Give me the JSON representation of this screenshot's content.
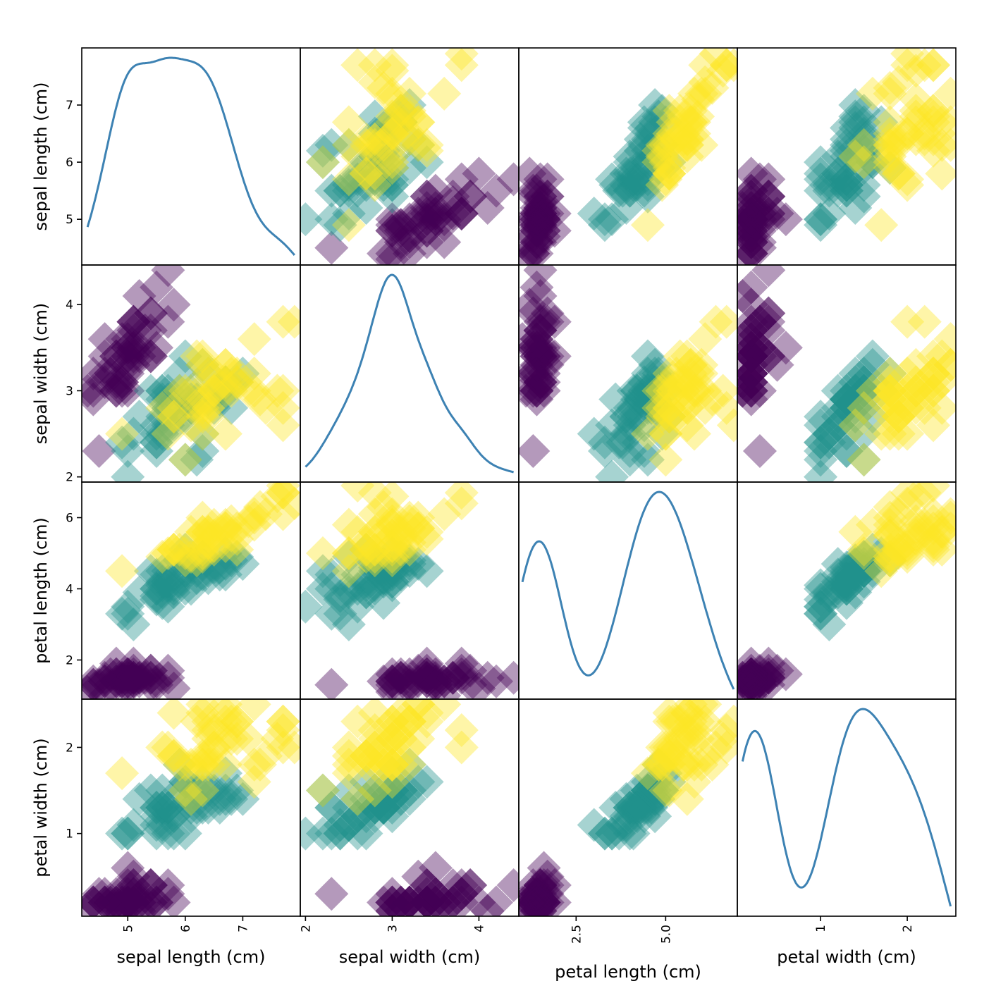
{
  "chart_data": {
    "type": "scatter",
    "title": "",
    "kind": "scatter_matrix",
    "diagonal": "kde",
    "marker": "diamond",
    "alpha": 0.4,
    "colormap": "viridis",
    "class_colors": [
      "#440154",
      "#21918c",
      "#fde725"
    ],
    "kde_color": "#1f77b4",
    "variables": [
      "sepal length (cm)",
      "sepal width (cm)",
      "petal length (cm)",
      "petal width (cm)"
    ],
    "axis_ranges": [
      [
        4.2,
        8.0
      ],
      [
        1.94,
        4.46
      ],
      [
        0.9,
        7.0
      ],
      [
        0.04,
        2.56
      ]
    ],
    "yticks": [
      {
        "values": [
          5,
          6,
          7
        ],
        "labels": [
          "5",
          "6",
          "7"
        ]
      },
      {
        "values": [
          2,
          3,
          4
        ],
        "labels": [
          "2",
          "3",
          "4"
        ]
      },
      {
        "values": [
          2,
          4,
          6
        ],
        "labels": [
          "2",
          "4",
          "6"
        ]
      },
      {
        "values": [
          1,
          2
        ],
        "labels": [
          "1",
          "2"
        ]
      }
    ],
    "xticks": [
      {
        "values": [
          5,
          6,
          7
        ],
        "labels": [
          "5",
          "6",
          "7"
        ]
      },
      {
        "values": [
          2,
          3,
          4
        ],
        "labels": [
          "2",
          "3",
          "4"
        ]
      },
      {
        "values": [
          2.5,
          5.0
        ],
        "labels": [
          "2.5",
          "5.0"
        ]
      },
      {
        "values": [
          1,
          2
        ],
        "labels": [
          "1",
          "2"
        ]
      }
    ],
    "grid": false,
    "legend": "none",
    "samples": [
      [
        5.1,
        3.5,
        1.4,
        0.2,
        0
      ],
      [
        4.9,
        3.0,
        1.4,
        0.2,
        0
      ],
      [
        4.7,
        3.2,
        1.3,
        0.2,
        0
      ],
      [
        4.6,
        3.1,
        1.5,
        0.2,
        0
      ],
      [
        5.0,
        3.6,
        1.4,
        0.2,
        0
      ],
      [
        5.4,
        3.9,
        1.7,
        0.4,
        0
      ],
      [
        4.6,
        3.4,
        1.4,
        0.3,
        0
      ],
      [
        5.0,
        3.4,
        1.5,
        0.2,
        0
      ],
      [
        4.4,
        2.9,
        1.4,
        0.2,
        0
      ],
      [
        4.9,
        3.1,
        1.5,
        0.1,
        0
      ],
      [
        5.4,
        3.7,
        1.5,
        0.2,
        0
      ],
      [
        4.8,
        3.4,
        1.6,
        0.2,
        0
      ],
      [
        4.8,
        3.0,
        1.4,
        0.1,
        0
      ],
      [
        4.3,
        3.0,
        1.1,
        0.1,
        0
      ],
      [
        5.8,
        4.0,
        1.2,
        0.2,
        0
      ],
      [
        5.7,
        4.4,
        1.5,
        0.4,
        0
      ],
      [
        5.4,
        3.9,
        1.3,
        0.4,
        0
      ],
      [
        5.1,
        3.5,
        1.4,
        0.3,
        0
      ],
      [
        5.7,
        3.8,
        1.7,
        0.3,
        0
      ],
      [
        5.1,
        3.8,
        1.5,
        0.3,
        0
      ],
      [
        5.4,
        3.4,
        1.7,
        0.2,
        0
      ],
      [
        5.1,
        3.7,
        1.5,
        0.4,
        0
      ],
      [
        4.6,
        3.6,
        1.0,
        0.2,
        0
      ],
      [
        5.1,
        3.3,
        1.7,
        0.5,
        0
      ],
      [
        4.8,
        3.4,
        1.9,
        0.2,
        0
      ],
      [
        5.0,
        3.0,
        1.6,
        0.2,
        0
      ],
      [
        5.0,
        3.4,
        1.6,
        0.4,
        0
      ],
      [
        5.2,
        3.5,
        1.5,
        0.2,
        0
      ],
      [
        5.2,
        3.4,
        1.4,
        0.2,
        0
      ],
      [
        4.7,
        3.2,
        1.6,
        0.2,
        0
      ],
      [
        4.8,
        3.1,
        1.6,
        0.2,
        0
      ],
      [
        5.4,
        3.4,
        1.5,
        0.4,
        0
      ],
      [
        5.2,
        4.1,
        1.5,
        0.1,
        0
      ],
      [
        5.5,
        4.2,
        1.4,
        0.2,
        0
      ],
      [
        4.9,
        3.1,
        1.5,
        0.2,
        0
      ],
      [
        5.0,
        3.2,
        1.2,
        0.2,
        0
      ],
      [
        5.5,
        3.5,
        1.3,
        0.2,
        0
      ],
      [
        4.9,
        3.6,
        1.4,
        0.1,
        0
      ],
      [
        4.4,
        3.0,
        1.3,
        0.2,
        0
      ],
      [
        5.1,
        3.4,
        1.5,
        0.2,
        0
      ],
      [
        5.0,
        3.5,
        1.3,
        0.3,
        0
      ],
      [
        4.5,
        2.3,
        1.3,
        0.3,
        0
      ],
      [
        4.4,
        3.2,
        1.3,
        0.2,
        0
      ],
      [
        5.0,
        3.5,
        1.6,
        0.6,
        0
      ],
      [
        5.1,
        3.8,
        1.9,
        0.4,
        0
      ],
      [
        4.8,
        3.0,
        1.4,
        0.3,
        0
      ],
      [
        5.1,
        3.8,
        1.6,
        0.2,
        0
      ],
      [
        4.6,
        3.2,
        1.4,
        0.2,
        0
      ],
      [
        5.3,
        3.7,
        1.5,
        0.2,
        0
      ],
      [
        5.0,
        3.3,
        1.4,
        0.2,
        0
      ],
      [
        7.0,
        3.2,
        4.7,
        1.4,
        1
      ],
      [
        6.4,
        3.2,
        4.5,
        1.5,
        1
      ],
      [
        6.9,
        3.1,
        4.9,
        1.5,
        1
      ],
      [
        5.5,
        2.3,
        4.0,
        1.3,
        1
      ],
      [
        6.5,
        2.8,
        4.6,
        1.5,
        1
      ],
      [
        5.7,
        2.8,
        4.5,
        1.3,
        1
      ],
      [
        6.3,
        3.3,
        4.7,
        1.6,
        1
      ],
      [
        4.9,
        2.4,
        3.3,
        1.0,
        1
      ],
      [
        6.6,
        2.9,
        4.6,
        1.3,
        1
      ],
      [
        5.2,
        2.7,
        3.9,
        1.4,
        1
      ],
      [
        5.0,
        2.0,
        3.5,
        1.0,
        1
      ],
      [
        5.9,
        3.0,
        4.2,
        1.5,
        1
      ],
      [
        6.0,
        2.2,
        4.0,
        1.0,
        1
      ],
      [
        6.1,
        2.9,
        4.7,
        1.4,
        1
      ],
      [
        5.6,
        2.9,
        3.6,
        1.3,
        1
      ],
      [
        6.7,
        3.1,
        4.4,
        1.4,
        1
      ],
      [
        5.6,
        3.0,
        4.5,
        1.5,
        1
      ],
      [
        5.8,
        2.7,
        4.1,
        1.0,
        1
      ],
      [
        6.2,
        2.2,
        4.5,
        1.5,
        1
      ],
      [
        5.6,
        2.5,
        3.9,
        1.1,
        1
      ],
      [
        5.9,
        3.2,
        4.8,
        1.8,
        1
      ],
      [
        6.1,
        2.8,
        4.0,
        1.3,
        1
      ],
      [
        6.3,
        2.5,
        4.9,
        1.5,
        1
      ],
      [
        6.1,
        2.8,
        4.7,
        1.2,
        1
      ],
      [
        6.4,
        2.9,
        4.3,
        1.3,
        1
      ],
      [
        6.6,
        3.0,
        4.4,
        1.4,
        1
      ],
      [
        6.8,
        2.8,
        4.8,
        1.4,
        1
      ],
      [
        6.7,
        3.0,
        5.0,
        1.7,
        1
      ],
      [
        6.0,
        2.9,
        4.5,
        1.5,
        1
      ],
      [
        5.7,
        2.6,
        3.5,
        1.0,
        1
      ],
      [
        5.5,
        2.4,
        3.8,
        1.1,
        1
      ],
      [
        5.5,
        2.4,
        3.7,
        1.0,
        1
      ],
      [
        5.8,
        2.7,
        3.9,
        1.2,
        1
      ],
      [
        6.0,
        2.7,
        5.1,
        1.6,
        1
      ],
      [
        5.4,
        3.0,
        4.5,
        1.5,
        1
      ],
      [
        6.0,
        3.4,
        4.5,
        1.6,
        1
      ],
      [
        6.7,
        3.1,
        4.7,
        1.5,
        1
      ],
      [
        6.3,
        2.3,
        4.4,
        1.3,
        1
      ],
      [
        5.6,
        3.0,
        4.1,
        1.3,
        1
      ],
      [
        5.5,
        2.5,
        4.0,
        1.3,
        1
      ],
      [
        5.5,
        2.6,
        4.4,
        1.2,
        1
      ],
      [
        6.1,
        3.0,
        4.6,
        1.4,
        1
      ],
      [
        5.8,
        2.6,
        4.0,
        1.2,
        1
      ],
      [
        5.0,
        2.3,
        3.3,
        1.0,
        1
      ],
      [
        5.6,
        2.7,
        4.2,
        1.3,
        1
      ],
      [
        5.7,
        3.0,
        4.2,
        1.2,
        1
      ],
      [
        5.7,
        2.9,
        4.2,
        1.3,
        1
      ],
      [
        6.2,
        2.9,
        4.3,
        1.3,
        1
      ],
      [
        5.1,
        2.5,
        3.0,
        1.1,
        1
      ],
      [
        5.7,
        2.8,
        4.1,
        1.3,
        1
      ],
      [
        6.3,
        3.3,
        6.0,
        2.5,
        2
      ],
      [
        5.8,
        2.7,
        5.1,
        1.9,
        2
      ],
      [
        7.1,
        3.0,
        5.9,
        2.1,
        2
      ],
      [
        6.3,
        2.9,
        5.6,
        1.8,
        2
      ],
      [
        6.5,
        3.0,
        5.8,
        2.2,
        2
      ],
      [
        7.6,
        3.0,
        6.6,
        2.1,
        2
      ],
      [
        4.9,
        2.5,
        4.5,
        1.7,
        2
      ],
      [
        7.3,
        2.9,
        6.3,
        1.8,
        2
      ],
      [
        6.7,
        2.5,
        5.8,
        1.8,
        2
      ],
      [
        7.2,
        3.6,
        6.1,
        2.5,
        2
      ],
      [
        6.5,
        3.2,
        5.1,
        2.0,
        2
      ],
      [
        6.4,
        2.7,
        5.3,
        1.9,
        2
      ],
      [
        6.8,
        3.0,
        5.5,
        2.1,
        2
      ],
      [
        5.7,
        2.5,
        5.0,
        2.0,
        2
      ],
      [
        5.8,
        2.8,
        5.1,
        2.4,
        2
      ],
      [
        6.4,
        3.2,
        5.3,
        2.3,
        2
      ],
      [
        6.5,
        3.0,
        5.5,
        1.8,
        2
      ],
      [
        7.7,
        3.8,
        6.7,
        2.2,
        2
      ],
      [
        7.7,
        2.6,
        6.9,
        2.3,
        2
      ],
      [
        6.0,
        2.2,
        5.0,
        1.5,
        2
      ],
      [
        6.9,
        3.2,
        5.7,
        2.3,
        2
      ],
      [
        5.6,
        2.8,
        4.9,
        2.0,
        2
      ],
      [
        7.7,
        2.8,
        6.7,
        2.0,
        2
      ],
      [
        6.3,
        2.7,
        4.9,
        1.8,
        2
      ],
      [
        6.7,
        3.3,
        5.7,
        2.1,
        2
      ],
      [
        7.2,
        3.2,
        6.0,
        1.8,
        2
      ],
      [
        6.2,
        2.8,
        4.8,
        1.8,
        2
      ],
      [
        6.1,
        3.0,
        4.9,
        1.8,
        2
      ],
      [
        6.4,
        2.8,
        5.6,
        2.1,
        2
      ],
      [
        7.2,
        3.0,
        5.8,
        1.6,
        2
      ],
      [
        7.4,
        2.8,
        6.1,
        1.9,
        2
      ],
      [
        7.9,
        3.8,
        6.4,
        2.0,
        2
      ],
      [
        6.4,
        2.8,
        5.6,
        2.2,
        2
      ],
      [
        6.3,
        2.8,
        5.1,
        1.5,
        2
      ],
      [
        6.1,
        2.6,
        5.6,
        1.4,
        2
      ],
      [
        7.7,
        3.0,
        6.1,
        2.3,
        2
      ],
      [
        6.3,
        3.4,
        5.6,
        2.4,
        2
      ],
      [
        6.4,
        3.1,
        5.5,
        1.8,
        2
      ],
      [
        6.0,
        3.0,
        4.8,
        1.8,
        2
      ],
      [
        6.9,
        3.1,
        5.4,
        2.1,
        2
      ],
      [
        6.7,
        3.1,
        5.6,
        2.4,
        2
      ],
      [
        6.9,
        3.1,
        5.1,
        2.3,
        2
      ],
      [
        5.8,
        2.7,
        5.1,
        1.9,
        2
      ],
      [
        6.8,
        3.2,
        5.9,
        2.3,
        2
      ],
      [
        6.7,
        3.3,
        5.7,
        2.5,
        2
      ],
      [
        6.7,
        3.0,
        5.2,
        2.3,
        2
      ],
      [
        6.3,
        2.5,
        5.0,
        1.9,
        2
      ],
      [
        6.5,
        3.0,
        5.2,
        2.0,
        2
      ],
      [
        6.2,
        3.4,
        5.4,
        2.3,
        2
      ],
      [
        5.9,
        3.0,
        5.1,
        1.8,
        2
      ]
    ]
  }
}
